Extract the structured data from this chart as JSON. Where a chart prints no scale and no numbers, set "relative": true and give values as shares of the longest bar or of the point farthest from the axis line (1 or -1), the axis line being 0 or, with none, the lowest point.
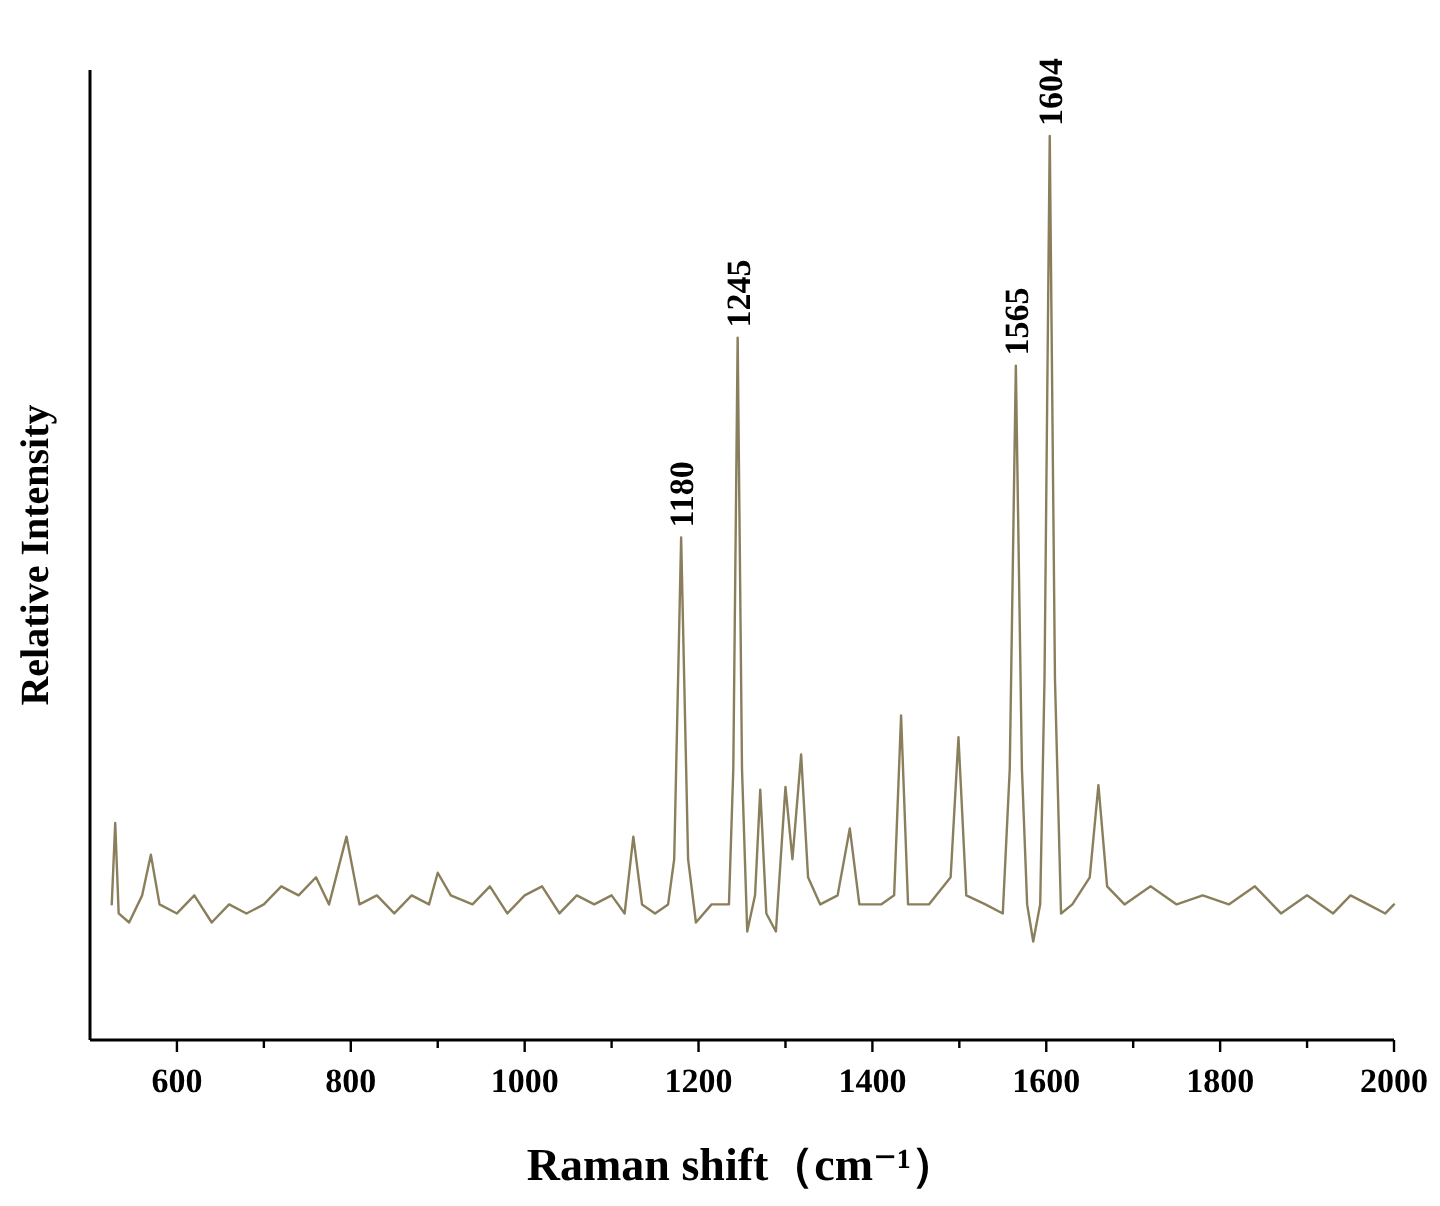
{
  "chart_data": {
    "type": "line",
    "relative": true,
    "xlabel": "Raman shift（cm⁻¹）",
    "ylabel": "Relative Intensity",
    "xlim": [
      500,
      2000
    ],
    "xticks": [
      600,
      {
        "value": 700,
        "label": null
      },
      800,
      {
        "value": 900,
        "label": null
      },
      1000,
      {
        "value": 1100,
        "label": null
      },
      1200,
      {
        "value": 1300,
        "label": null
      },
      1400,
      {
        "value": 1500,
        "label": null
      },
      1600,
      {
        "value": 1700,
        "label": null
      },
      1800,
      {
        "value": 1900,
        "label": null
      },
      2000
    ],
    "x": [
      525,
      529,
      533,
      545,
      560,
      570,
      580,
      600,
      620,
      640,
      660,
      680,
      700,
      720,
      740,
      760,
      775,
      795,
      810,
      830,
      850,
      870,
      890,
      900,
      915,
      940,
      960,
      980,
      1000,
      1020,
      1040,
      1060,
      1080,
      1100,
      1115,
      1125,
      1135,
      1150,
      1165,
      1172,
      1180,
      1188,
      1197,
      1215,
      1235,
      1240,
      1245,
      1250,
      1256,
      1265,
      1271,
      1278,
      1289,
      1300,
      1308,
      1318,
      1326,
      1340,
      1360,
      1374,
      1385,
      1410,
      1425,
      1433,
      1441,
      1465,
      1490,
      1499,
      1508,
      1530,
      1550,
      1558,
      1565,
      1572,
      1578,
      1585,
      1593,
      1598,
      1604,
      1610,
      1617,
      1630,
      1650,
      1660,
      1670,
      1690,
      1720,
      1750,
      1780,
      1810,
      1840,
      1870,
      1900,
      1930,
      1950,
      1970,
      1990,
      2000
    ],
    "series": [
      {
        "color": "#8a7f5c",
        "values": [
          0.15,
          0.24,
          0.14,
          0.13,
          0.16,
          0.205,
          0.15,
          0.14,
          0.16,
          0.13,
          0.15,
          0.14,
          0.15,
          0.17,
          0.16,
          0.18,
          0.15,
          0.225,
          0.15,
          0.16,
          0.14,
          0.16,
          0.15,
          0.185,
          0.16,
          0.15,
          0.17,
          0.14,
          0.16,
          0.17,
          0.14,
          0.16,
          0.15,
          0.16,
          0.14,
          0.225,
          0.15,
          0.14,
          0.15,
          0.2,
          0.556,
          0.2,
          0.13,
          0.15,
          0.15,
          0.3,
          0.777,
          0.3,
          0.12,
          0.16,
          0.277,
          0.14,
          0.12,
          0.28,
          0.2,
          0.316,
          0.18,
          0.15,
          0.16,
          0.234,
          0.15,
          0.15,
          0.16,
          0.359,
          0.15,
          0.15,
          0.18,
          0.335,
          0.16,
          0.15,
          0.14,
          0.3,
          0.746,
          0.3,
          0.15,
          0.109,
          0.15,
          0.4,
          1.0,
          0.4,
          0.14,
          0.15,
          0.18,
          0.282,
          0.17,
          0.15,
          0.17,
          0.15,
          0.16,
          0.15,
          0.17,
          0.14,
          0.16,
          0.14,
          0.16,
          0.15,
          0.14,
          0.15
        ]
      }
    ],
    "annotations": [
      {
        "text": "1180",
        "x": 1180,
        "y": 0.556
      },
      {
        "text": "1245",
        "x": 1245,
        "y": 0.777
      },
      {
        "text": "1565",
        "x": 1565,
        "y": 0.746
      },
      {
        "text": "1604",
        "x": 1604,
        "y": 1.0
      }
    ]
  }
}
